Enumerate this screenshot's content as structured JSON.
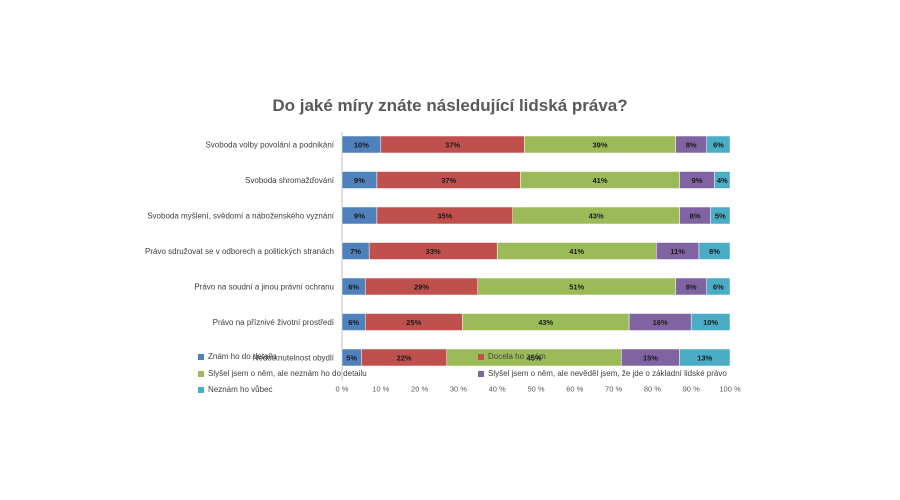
{
  "chart_data": {
    "type": "bar",
    "orientation": "horizontal-stacked-100",
    "title": "Do jaké míry znáte následující lidská práva?",
    "categories": [
      "Svoboda volby povolání a podnikání",
      "Svoboda shromažďování",
      "Svoboda myšlení, svědomí a náboženského vyznání",
      "Právo sdružovat se v odborech a politických stranách",
      "Právo na soudní a jinou právní ochranu",
      "Právo na příznivé životní prostředí",
      "Nedotknutelnost obydlí"
    ],
    "series": [
      {
        "name": "Znám ho do detailu",
        "color": "#4f81bd",
        "values": [
          10,
          9,
          9,
          7,
          6,
          6,
          5
        ]
      },
      {
        "name": "Docela ho znám",
        "color": "#c0504d",
        "values": [
          37,
          37,
          35,
          33,
          29,
          25,
          22
        ]
      },
      {
        "name": "Slyšel jsem o něm, ale neznám ho do detailu",
        "color": "#9bbb59",
        "values": [
          39,
          41,
          43,
          41,
          51,
          43,
          45
        ]
      },
      {
        "name": "Slyšel jsem o něm, ale nevěděl jsem, že jde o základní lidské právo",
        "color": "#8064a2",
        "values": [
          8,
          9,
          8,
          11,
          8,
          16,
          15
        ]
      },
      {
        "name": "Neznám ho vůbec",
        "color": "#4bacc6",
        "values": [
          6,
          4,
          5,
          8,
          6,
          10,
          13
        ]
      }
    ],
    "x_ticks": [
      "0 %",
      "10 %",
      "20 %",
      "30 %",
      "40 %",
      "50 %",
      "60 %",
      "70 %",
      "80 %",
      "90 %",
      "100 %"
    ],
    "xlim": [
      0,
      100
    ],
    "grid": false,
    "legend_placement": "bottom"
  }
}
